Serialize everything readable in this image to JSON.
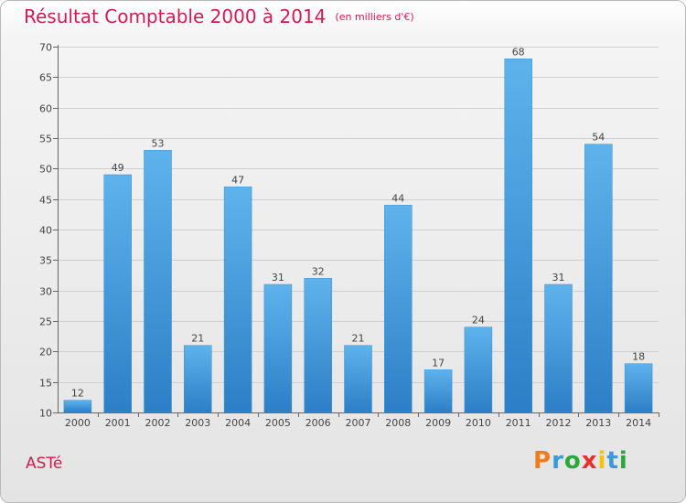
{
  "commune": "ASTé",
  "logo": {
    "letters": [
      "P",
      "r",
      "o",
      "x",
      "i",
      "t",
      "i"
    ],
    "colors": [
      "#f07c1c",
      "#3a9ad9",
      "#2aa839",
      "#e8312b",
      "#f5c400",
      "#3a9ad9",
      "#2aa839"
    ]
  },
  "chart_data": {
    "type": "bar",
    "title": "Résultat Comptable 2000 à 2014",
    "subtitle": "(en milliers d'€)",
    "categories": [
      "2000",
      "2001",
      "2002",
      "2003",
      "2004",
      "2005",
      "2006",
      "2007",
      "2008",
      "2009",
      "2010",
      "2011",
      "2012",
      "2013",
      "2014"
    ],
    "values": [
      12,
      49,
      53,
      21,
      47,
      31,
      32,
      21,
      44,
      17,
      24,
      68,
      31,
      54,
      18
    ],
    "ylim": [
      10,
      70
    ],
    "yticks": [
      10,
      15,
      20,
      25,
      30,
      35,
      40,
      45,
      50,
      55,
      60,
      65,
      70
    ],
    "xlabel": "",
    "ylabel": "",
    "grid": true,
    "bar_color": "#4ea6e3",
    "label_color": "#444444",
    "title_color": "#d41a55"
  }
}
